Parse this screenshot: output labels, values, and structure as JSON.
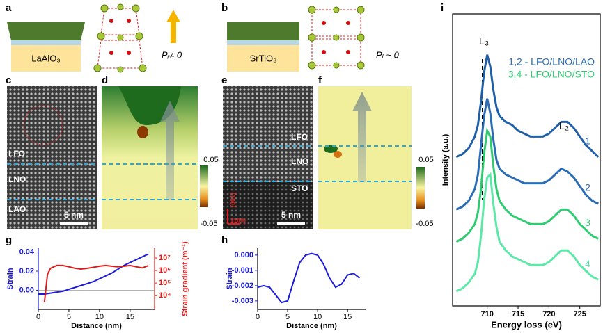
{
  "panel_labels": [
    "a",
    "b",
    "c",
    "d",
    "e",
    "f",
    "g",
    "h",
    "i"
  ],
  "schematic_a": {
    "substrate": "LaAlO₃",
    "polarization": "Pᵣ≠ 0"
  },
  "schematic_b": {
    "substrate": "SrTiO₃",
    "polarization": "Pₗ ~ 0"
  },
  "image_c": {
    "layers": [
      "LFO",
      "LNO",
      "LAO"
    ],
    "scale_bar": "5 nm"
  },
  "map_d": {
    "colorbar": [
      "0.05",
      "-0.05"
    ]
  },
  "image_e": {
    "layers": [
      "LFO",
      "LNO",
      "STO"
    ],
    "scale_bar": "5 nm",
    "directions": [
      "[001]",
      "[100]"
    ]
  },
  "map_f": {
    "colorbar": [
      "0.05",
      "-0.05"
    ]
  },
  "chart_data": [
    {
      "type": "line",
      "x_label": "Distance (nm)",
      "y_label": "Strain",
      "y2_label": "Strain gradient (m⁻¹)",
      "xlim": [
        0,
        19
      ],
      "xticks": [
        0,
        5,
        10,
        15
      ],
      "ylim": [
        -0.02,
        0.044
      ],
      "yticks": [
        {
          "value": 0,
          "label": "0.00"
        },
        0.02,
        0.04
      ],
      "y2lim": [
        800,
        60000000
      ],
      "y2scale": "log",
      "y2ticks": [
        {
          "value": 10000,
          "label": "10⁴"
        },
        {
          "value": 100000,
          "label": "10⁵"
        },
        {
          "value": 1000000,
          "label": "10⁶"
        },
        {
          "value": 10000000,
          "label": "10⁷"
        }
      ],
      "series": [
        {
          "color": "#1a1adb",
          "x": [
            0,
            1,
            2,
            3,
            4,
            5,
            6,
            7,
            8,
            9,
            10,
            11,
            12,
            13,
            14,
            15,
            16,
            17,
            18
          ],
          "values": [
            -0.004,
            -0.004,
            -0.003,
            -0.002,
            -0.001,
            0.001,
            0.003,
            0.005,
            0.007,
            0.009,
            0.012,
            0.015,
            0.018,
            0.022,
            0.026,
            0.029,
            0.032,
            0.035,
            0.038
          ]
        },
        {
          "color": "#e01a1a",
          "axis": "y2",
          "x": [
            1,
            1.5,
            2,
            3,
            4,
            5,
            6,
            7,
            8,
            9,
            10,
            11,
            12,
            13,
            14,
            15,
            16,
            17,
            18
          ],
          "values": [
            3000,
            500000,
            1500000,
            2500000,
            2500000,
            2000000,
            1500000,
            1300000,
            1500000,
            1800000,
            2200000,
            2500000,
            2200000,
            2000000,
            2200000,
            2500000,
            2000000,
            1600000,
            2500000
          ]
        }
      ]
    },
    {
      "type": "line",
      "x_label": "Distance (nm)",
      "y_label": "Strain",
      "xlim": [
        0,
        18
      ],
      "xticks": [
        0,
        5,
        10,
        15
      ],
      "ylim": [
        -0.00355,
        0.00045
      ],
      "yticks": [
        {
          "value": 0,
          "label": "0.000"
        },
        -0.001,
        -0.002,
        -0.003
      ],
      "x": [
        0,
        1,
        2,
        3,
        4,
        5,
        6,
        7,
        8,
        9,
        10,
        11,
        12,
        13,
        14,
        15,
        16,
        17
      ],
      "series": [
        {
          "color": "#1a1adb",
          "values": [
            -0.0021,
            -0.002,
            -0.0021,
            -0.0026,
            -0.0031,
            -0.003,
            -0.0017,
            -0.0005,
            0,
            0.0001,
            0,
            -0.0006,
            -0.0015,
            -0.0021,
            -0.0019,
            -0.0013,
            -0.0012,
            -0.0015
          ]
        }
      ]
    },
    {
      "type": "line",
      "x_label": "Energy loss (eV)",
      "y_label": "Intensity (a.u.)",
      "xlim": [
        704.4,
        728.3
      ],
      "xticks": [
        710,
        715,
        720,
        725
      ],
      "ylim": [
        0,
        100
      ],
      "annotations": [
        "L₃",
        "L₂"
      ],
      "legend": [
        {
          "text": "1,2 - LFO/LNO/LAO",
          "color": "#2a6db5"
        },
        {
          "text": "3,4 - LFO/LNO/STO",
          "color": "#2ecc71"
        }
      ],
      "x": [
        705,
        706,
        707,
        708,
        708.5,
        709,
        709.5,
        710,
        710.5,
        711,
        711.5,
        712,
        713,
        714,
        715,
        716,
        717,
        718,
        719,
        720,
        721,
        722,
        723,
        724,
        725,
        726,
        727,
        728
      ],
      "series": [
        {
          "name": "1",
          "color": "#1f5fa8",
          "values": [
            51,
            52,
            54,
            58,
            62,
            70,
            80,
            86,
            82,
            74,
            68,
            65,
            63,
            62,
            60,
            59,
            58,
            58,
            58,
            59,
            61,
            63,
            63,
            61,
            58,
            55,
            53,
            51
          ]
        },
        {
          "name": "2",
          "color": "#2a6db5",
          "values": [
            33,
            34,
            36,
            40,
            45,
            55,
            65,
            71,
            66,
            57,
            50,
            47,
            45,
            44,
            43,
            42,
            42,
            42,
            42,
            43,
            45,
            47,
            46,
            44,
            41,
            38,
            36,
            35
          ]
        },
        {
          "name": "3",
          "color": "#2ecc71",
          "values": [
            22,
            23,
            25,
            28,
            32,
            40,
            52,
            60,
            58,
            48,
            40,
            36,
            33,
            31,
            30,
            29,
            28,
            28,
            28,
            29,
            31,
            33,
            33,
            31,
            28,
            26,
            24,
            23
          ]
        },
        {
          "name": "4",
          "color": "#5de8a8",
          "values": [
            5,
            6,
            8,
            11,
            15,
            24,
            36,
            44,
            45,
            35,
            27,
            22,
            19,
            17,
            16,
            15,
            14,
            14,
            14,
            15,
            17,
            19,
            19,
            17,
            14,
            12,
            10,
            9
          ]
        }
      ]
    }
  ]
}
